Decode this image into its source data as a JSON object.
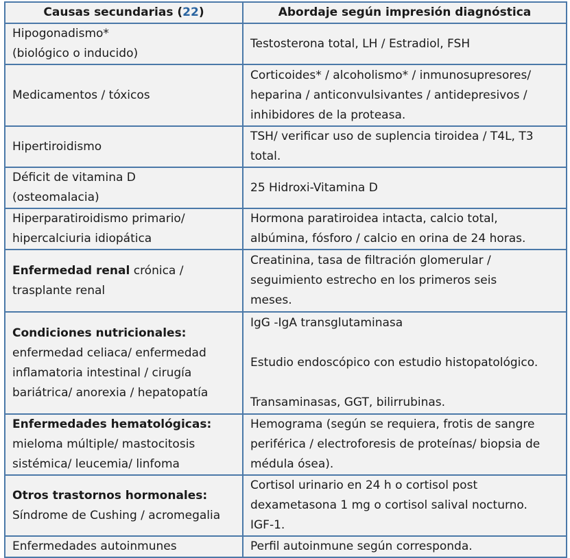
{
  "header": {
    "col1": "Causas secundarias (",
    "col1_ref": "22",
    "col1_end": ")",
    "col2": "Abordaje según impresión diagnóstica"
  },
  "rows": [
    {
      "cause_bold": "",
      "cause": [
        "Hipogonadismo*",
        "(biológico o inducido)"
      ],
      "approach": [
        "Testosterona total, LH / Estradiol, FSH"
      ]
    },
    {
      "cause_bold": "",
      "cause": [
        "Medicamentos / tóxicos"
      ],
      "approach": [
        "Corticoides* / alcoholismo* / inmunosupresores/",
        "heparina / anticonvulsivantes / antidepresivos /",
        "inhibidores de la proteasa."
      ]
    },
    {
      "cause_bold": "",
      "cause": [
        "Hipertiroidismo"
      ],
      "approach": [
        "TSH/ verificar uso de suplencia tiroidea / T4L, T3",
        "total."
      ]
    },
    {
      "cause_bold": "",
      "cause": [
        "Déficit de vitamina D",
        "(osteomalacia)"
      ],
      "approach": [
        "25 Hidroxi-Vitamina D"
      ]
    },
    {
      "cause_bold": "",
      "cause": [
        "Hiperparatiroidismo primario/",
        "hipercalciuria idiopática"
      ],
      "approach": [
        "Hormona paratiroidea intacta, calcio total,",
        "albúmina, fósforo / calcio en orina de 24 horas."
      ]
    },
    {
      "cause_bold": "Enfermedad renal",
      "cause_rest": " crónica /",
      "cause": [
        "trasplante renal"
      ],
      "approach": [
        "Creatinina, tasa de filtración glomerular /",
        "seguimiento estrecho en los primeros seis",
        "meses."
      ]
    },
    {
      "cause_bold": "Condiciones nutricionales:",
      "cause": [
        "enfermedad celiaca/ enfermedad",
        "inflamatoria intestinal / cirugía",
        "bariátrica/ anorexia / hepatopatía"
      ],
      "approach": [
        "IgG -IgA transglutaminasa",
        "Estudio endoscópico con estudio histopatológico.",
        "Transaminasas, GGT, bilirrubinas."
      ]
    },
    {
      "cause_bold": "Enfermedades hematológicas:",
      "cause": [
        "mieloma múltiple/ mastocitosis",
        "sistémica/ leucemia/ linfoma"
      ],
      "approach": [
        "Hemograma (según se requiera, frotis de sangre",
        "periférica / electroforesis de proteínas/ biopsia de",
        "médula ósea)."
      ]
    },
    {
      "cause_bold": "Otros trastornos hormonales:",
      "cause": [
        "Síndrome de Cushing / acromegalia"
      ],
      "approach": [
        "Cortisol urinario en 24 h o cortisol post",
        "dexametasona 1 mg o cortisol salival nocturno.",
        "IGF-1."
      ]
    },
    {
      "cause_bold": "",
      "cause": [
        "Enfermedades autoinmunes"
      ],
      "approach": [
        "Perfil autoinmune según corresponda."
      ]
    }
  ]
}
